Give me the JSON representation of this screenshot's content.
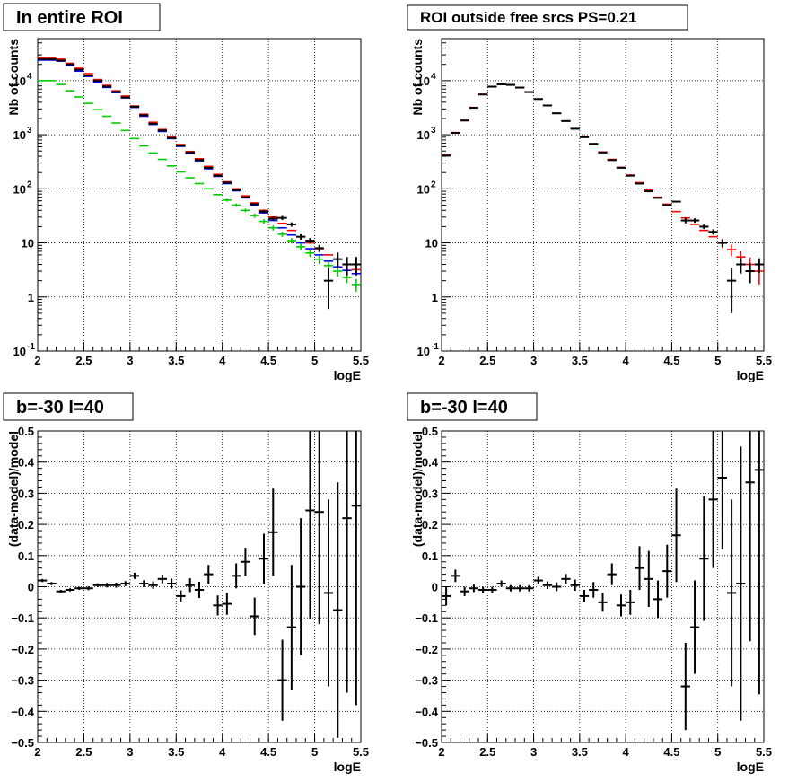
{
  "chart_data": [
    {
      "type": "scatter",
      "title": "In entire ROI",
      "xlabel": "logE",
      "ylabel": "Nb of counts",
      "xlim": [
        2,
        5.5
      ],
      "ylim": [
        0.1,
        60000
      ],
      "yscale": "log",
      "grid": true,
      "x_ticks": [
        "2",
        "2.5",
        "3",
        "3.5",
        "4",
        "4.5",
        "5",
        "5.5"
      ],
      "y_ticks": [
        "10^-1",
        "1",
        "10",
        "10^2",
        "10^3",
        "10^4"
      ],
      "series": [
        {
          "color": "#0000ff",
          "x": [
            2.05,
            2.15,
            2.25,
            2.35,
            2.45,
            2.55,
            2.65,
            2.75,
            2.85,
            2.95,
            3.05,
            3.15,
            3.25,
            3.35,
            3.45,
            3.55,
            3.65,
            3.75,
            3.85,
            3.95,
            4.05,
            4.15,
            4.25,
            4.35,
            4.45,
            4.55,
            4.65,
            4.75,
            4.85,
            4.95,
            5.05,
            5.15,
            5.25,
            5.35,
            5.45
          ],
          "y": [
            24000,
            24000,
            23000,
            19000,
            15000,
            12000,
            9500,
            7500,
            6000,
            4800,
            3200,
            2200,
            1550,
            1150,
            850,
            610,
            450,
            330,
            235,
            170,
            125,
            92,
            68,
            50,
            36,
            26,
            19,
            14,
            10,
            7.8,
            6,
            4.6,
            3.6,
            3.1,
            2.7
          ],
          "yerr": [
            0,
            0,
            0,
            0,
            0,
            0,
            0,
            0,
            0,
            0,
            0,
            0,
            0,
            0,
            0,
            0,
            0,
            0,
            0,
            0,
            0,
            0,
            0,
            0,
            0,
            0,
            0,
            0,
            0,
            0,
            0,
            0,
            0,
            0,
            0
          ]
        },
        {
          "color": "#ff0000",
          "x": [
            2.05,
            2.15,
            2.25,
            2.35,
            2.45,
            2.55,
            2.65,
            2.75,
            2.85,
            2.95,
            3.05,
            3.15,
            3.25,
            3.35,
            3.45,
            3.55,
            3.65,
            3.75,
            3.85,
            3.95,
            4.05,
            4.15,
            4.25,
            4.35,
            4.45,
            4.55,
            4.65,
            4.75,
            4.85,
            4.95,
            5.05,
            5.15,
            5.25,
            5.35,
            5.45
          ],
          "y": [
            26000,
            26000,
            25000,
            21000,
            17000,
            13500,
            10500,
            8200,
            6500,
            5200,
            3400,
            2400,
            1700,
            1250,
            900,
            660,
            490,
            360,
            260,
            185,
            135,
            100,
            74,
            55,
            40,
            30,
            23,
            17,
            13,
            10,
            7.8,
            6,
            5,
            4,
            3.2
          ],
          "yerr": [
            0,
            0,
            0,
            0,
            0,
            0,
            0,
            0,
            0,
            0,
            0,
            0,
            0,
            0,
            0,
            0,
            0,
            0,
            0,
            0,
            0,
            0,
            0,
            0,
            0,
            0,
            0,
            0,
            0,
            0,
            0,
            0,
            0,
            0,
            0.4
          ]
        },
        {
          "color": "#00cc00",
          "x": [
            2.05,
            2.15,
            2.25,
            2.35,
            2.45,
            2.55,
            2.65,
            2.75,
            2.85,
            2.95,
            3.05,
            3.15,
            3.25,
            3.35,
            3.45,
            3.55,
            3.65,
            3.75,
            3.85,
            3.95,
            4.05,
            4.15,
            4.25,
            4.35,
            4.45,
            4.55,
            4.65,
            4.75,
            4.85,
            4.95,
            5.05,
            5.15,
            5.25,
            5.35,
            5.45
          ],
          "y": [
            10000,
            10000,
            8500,
            6500,
            5000,
            3800,
            2900,
            2200,
            1650,
            1200,
            850,
            620,
            460,
            350,
            265,
            205,
            160,
            125,
            100,
            78,
            62,
            50,
            40,
            32,
            25,
            19,
            14.5,
            11,
            8.5,
            6.5,
            5,
            3.8,
            3,
            2.3,
            1.7
          ],
          "yerr": [
            0,
            0,
            0,
            0,
            0,
            0,
            0,
            0,
            0,
            0,
            0,
            0,
            0,
            0,
            0,
            0,
            0,
            0,
            0,
            0,
            4,
            3.5,
            3,
            3,
            2.5,
            2,
            1.6,
            1.3,
            1.2,
            1,
            0.9,
            0.8,
            0.6,
            0.5,
            0.45
          ]
        },
        {
          "color": "#000000",
          "x": [
            2.05,
            2.15,
            2.25,
            2.35,
            2.45,
            2.55,
            2.65,
            2.75,
            2.85,
            2.95,
            3.05,
            3.15,
            3.25,
            3.35,
            3.45,
            3.55,
            3.65,
            3.75,
            3.85,
            3.95,
            4.05,
            4.15,
            4.25,
            4.35,
            4.45,
            4.55,
            4.65,
            4.75,
            4.85,
            4.95,
            5.05,
            5.15,
            5.25,
            5.35,
            5.45
          ],
          "y": [
            25000,
            25000,
            23500,
            20000,
            16000,
            12500,
            10000,
            7800,
            6200,
            4900,
            3300,
            2300,
            1600,
            1200,
            870,
            630,
            470,
            340,
            245,
            175,
            130,
            95,
            70,
            52,
            38,
            28,
            29,
            22,
            13,
            11,
            8,
            2,
            5,
            4,
            4
          ],
          "yerr": [
            0,
            0,
            0,
            0,
            0,
            0,
            0,
            0,
            0,
            0,
            0,
            0,
            0,
            0,
            0,
            0,
            0,
            0,
            0,
            0,
            0,
            0,
            0,
            0,
            3,
            2.5,
            2.5,
            2,
            1.5,
            1.3,
            1.2,
            1.4,
            1.6,
            1.5,
            1.5
          ]
        }
      ]
    },
    {
      "type": "scatter",
      "title": "ROI outside free srcs PS=0.21",
      "xlabel": "logE",
      "ylabel": "Nb of counts",
      "xlim": [
        2,
        5.5
      ],
      "ylim": [
        0.1,
        60000
      ],
      "yscale": "log",
      "grid": true,
      "x_ticks": [
        "2",
        "2.5",
        "3",
        "3.5",
        "4",
        "4.5",
        "5",
        "5.5"
      ],
      "y_ticks": [
        "10^-1",
        "1",
        "10",
        "10^2",
        "10^3",
        "10^4"
      ],
      "series": [
        {
          "color": "#ff0000",
          "x": [
            2.05,
            2.15,
            2.25,
            2.35,
            2.45,
            2.55,
            2.65,
            2.75,
            2.85,
            2.95,
            3.05,
            3.15,
            3.25,
            3.35,
            3.45,
            3.55,
            3.65,
            3.75,
            3.85,
            3.95,
            4.05,
            4.15,
            4.25,
            4.35,
            4.45,
            4.55,
            4.65,
            4.75,
            4.85,
            4.95,
            5.05,
            5.15,
            5.25,
            5.35,
            5.45
          ],
          "y": [
            420,
            1100,
            1850,
            3200,
            5600,
            7800,
            8600,
            8400,
            7500,
            6200,
            4600,
            3500,
            2500,
            1800,
            1300,
            920,
            660,
            480,
            350,
            250,
            180,
            130,
            95,
            70,
            52,
            38,
            29,
            22,
            17,
            13,
            10,
            7.5,
            5.5,
            4,
            3
          ],
          "yerr": [
            0,
            0,
            0,
            0,
            0,
            0,
            0,
            0,
            0,
            0,
            0,
            0,
            0,
            0,
            0,
            0,
            0,
            0,
            0,
            0,
            0,
            0,
            0,
            0,
            0,
            0,
            0,
            0,
            0,
            0,
            2,
            1.8,
            1.5,
            1.4,
            1.3
          ]
        },
        {
          "color": "#000000",
          "x": [
            2.05,
            2.15,
            2.25,
            2.35,
            2.45,
            2.55,
            2.65,
            2.75,
            2.85,
            2.95,
            3.05,
            3.15,
            3.25,
            3.35,
            3.45,
            3.55,
            3.65,
            3.75,
            3.85,
            3.95,
            4.05,
            4.15,
            4.25,
            4.35,
            4.45,
            4.55,
            4.65,
            4.75,
            4.85,
            4.95,
            5.05,
            5.15,
            5.25,
            5.35,
            5.45
          ],
          "y": [
            410,
            1080,
            1830,
            3150,
            5550,
            7750,
            8550,
            8350,
            7450,
            6150,
            4580,
            3480,
            2490,
            1790,
            1290,
            900,
            680,
            470,
            340,
            245,
            175,
            125,
            90,
            68,
            50,
            58,
            26,
            26,
            20,
            16,
            10,
            2,
            4,
            3,
            4
          ],
          "yerr": [
            0,
            0,
            0,
            0,
            0,
            0,
            0,
            0,
            0,
            0,
            0,
            0,
            0,
            0,
            0,
            0,
            0,
            0,
            0,
            0,
            0,
            0,
            0,
            0,
            0,
            0,
            3,
            2.5,
            2,
            1.8,
            1.5,
            1.5,
            1.3,
            1.2,
            1.2
          ]
        }
      ]
    },
    {
      "type": "scatter",
      "title": "b=-30 l=40",
      "xlabel": "logE",
      "ylabel": "(data-model)/model",
      "xlim": [
        2,
        5.5
      ],
      "ylim": [
        -0.5,
        0.5
      ],
      "yscale": "linear",
      "grid": true,
      "x_ticks": [
        "2",
        "2.5",
        "3",
        "3.5",
        "4",
        "4.5",
        "5",
        "5.5"
      ],
      "y_ticks": [
        "−0.5",
        "−0.4",
        "−0.3",
        "−0.2",
        "−0.1",
        "0",
        "0.1",
        "0.2",
        "0.3",
        "0.4",
        "0.5"
      ],
      "series": [
        {
          "color": "#000000",
          "x": [
            2.05,
            2.15,
            2.25,
            2.35,
            2.45,
            2.55,
            2.65,
            2.75,
            2.85,
            2.95,
            3.05,
            3.15,
            3.25,
            3.35,
            3.45,
            3.55,
            3.65,
            3.75,
            3.85,
            3.95,
            4.05,
            4.15,
            4.25,
            4.35,
            4.45,
            4.55,
            4.65,
            4.75,
            4.85,
            4.95,
            5.05,
            5.15,
            5.25,
            5.35,
            5.45
          ],
          "y": [
            0.02,
            0.01,
            -0.015,
            -0.01,
            -0.005,
            -0.005,
            0.005,
            0.005,
            0.005,
            0.01,
            0.035,
            0.01,
            0.005,
            0.025,
            0.01,
            -0.03,
            0.005,
            -0.01,
            0.04,
            -0.06,
            -0.055,
            0.035,
            0.08,
            -0.095,
            0.09,
            0.175,
            -0.3,
            -0.13,
            0,
            0.245,
            0.24,
            -0.02,
            -0.075,
            0.22,
            0.26
          ],
          "yerr": [
            0.005,
            0.005,
            0.005,
            0.005,
            0.005,
            0.006,
            0.006,
            0.007,
            0.008,
            0.008,
            0.01,
            0.011,
            0.012,
            0.014,
            0.016,
            0.018,
            0.022,
            0.026,
            0.03,
            0.032,
            0.035,
            0.04,
            0.045,
            0.06,
            0.08,
            0.14,
            0.13,
            0.2,
            0.22,
            0.35,
            0.36,
            0.3,
            0.41,
            0.56,
            0.64
          ]
        }
      ]
    },
    {
      "type": "scatter",
      "title": "b=-30 l=40",
      "xlabel": "logE",
      "ylabel": "(data-model)/model",
      "xlim": [
        2,
        5.5
      ],
      "ylim": [
        -0.5,
        0.5
      ],
      "yscale": "linear",
      "grid": true,
      "x_ticks": [
        "2",
        "2.5",
        "3",
        "3.5",
        "4",
        "4.5",
        "5",
        "5.5"
      ],
      "y_ticks": [
        "−0.5",
        "−0.4",
        "−0.3",
        "−0.2",
        "−0.1",
        "0",
        "0.1",
        "0.2",
        "0.3",
        "0.4",
        "0.5"
      ],
      "series": [
        {
          "color": "#000000",
          "x": [
            2.05,
            2.15,
            2.25,
            2.35,
            2.45,
            2.55,
            2.65,
            2.75,
            2.85,
            2.95,
            3.05,
            3.15,
            3.25,
            3.35,
            3.45,
            3.55,
            3.65,
            3.75,
            3.85,
            3.95,
            4.05,
            4.15,
            4.25,
            4.35,
            4.45,
            4.55,
            4.65,
            4.75,
            4.85,
            4.95,
            5.05,
            5.15,
            5.25,
            5.35,
            5.45
          ],
          "y": [
            -0.03,
            0.035,
            -0.015,
            -0.005,
            -0.01,
            -0.01,
            0.01,
            -0.005,
            -0.005,
            -0.005,
            0.02,
            0.005,
            0,
            0.025,
            0.005,
            -0.03,
            -0.01,
            -0.05,
            0.04,
            -0.06,
            -0.05,
            0.06,
            0.025,
            -0.04,
            0.05,
            0.165,
            -0.32,
            -0.13,
            0.09,
            0.28,
            0.35,
            -0.02,
            0.01,
            0.335,
            0.375
          ],
          "yerr": [
            0.03,
            0.02,
            0.015,
            0.012,
            0.01,
            0.01,
            0.01,
            0.01,
            0.01,
            0.01,
            0.012,
            0.012,
            0.014,
            0.016,
            0.018,
            0.02,
            0.025,
            0.03,
            0.035,
            0.035,
            0.04,
            0.07,
            0.09,
            0.06,
            0.085,
            0.15,
            0.14,
            0.15,
            0.2,
            0.22,
            0.23,
            0.3,
            0.44,
            0.51,
            0.72
          ]
        }
      ]
    }
  ]
}
